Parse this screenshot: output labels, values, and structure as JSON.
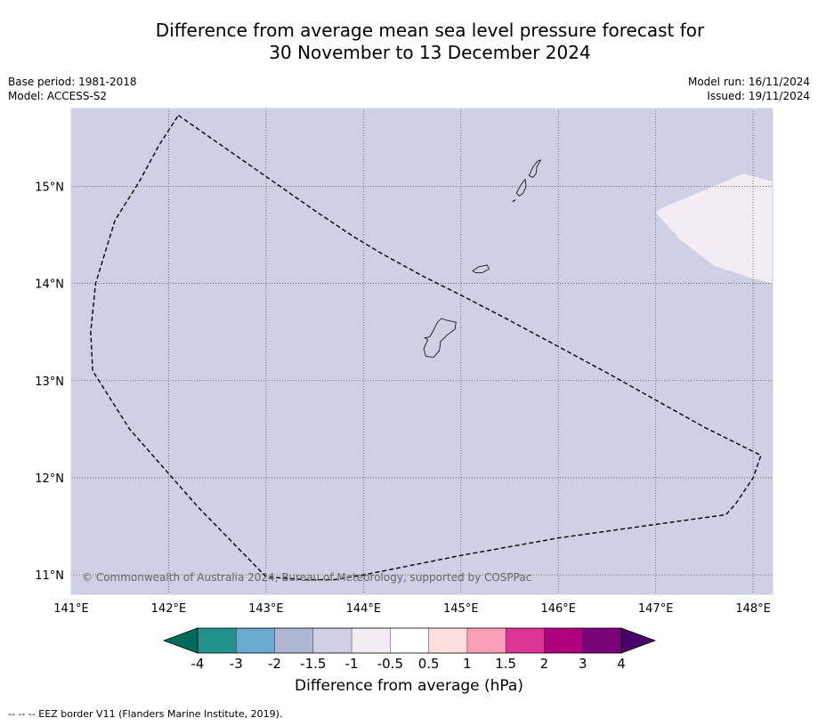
{
  "title": {
    "line1": "Difference from average mean sea level pressure forecast for",
    "line2": "30 November to 13 December 2024"
  },
  "meta_left": {
    "base_period": "Base period: 1981-2018",
    "model": "Model: ACCESS-S2"
  },
  "meta_right": {
    "model_run": "Model run: 16/11/2024",
    "issued": "Issued: 19/11/2024"
  },
  "map": {
    "lon_range": [
      141.0,
      148.2
    ],
    "lat_range": [
      10.8,
      15.8
    ],
    "lon_ticks": [
      141,
      142,
      143,
      144,
      145,
      146,
      147,
      148
    ],
    "lon_labels": [
      "141°E",
      "142°E",
      "143°E",
      "144°E",
      "145°E",
      "146°E",
      "147°E",
      "148°E"
    ],
    "lat_ticks": [
      11,
      12,
      13,
      14,
      15
    ],
    "lat_labels": [
      "11°N",
      "12°N",
      "13°N",
      "14°N",
      "15°N"
    ],
    "background_color": "#cfd0e5",
    "anomaly_patch_color": "#f4ecf4",
    "anomaly_patch": [
      [
        147.0,
        14.73
      ],
      [
        147.05,
        14.77
      ],
      [
        147.9,
        15.13
      ],
      [
        148.2,
        15.05
      ],
      [
        148.2,
        14.0
      ],
      [
        148.0,
        14.05
      ],
      [
        147.6,
        14.18
      ],
      [
        147.25,
        14.45
      ]
    ],
    "eez_border": [
      [
        142.1,
        15.73
      ],
      [
        142.5,
        15.45
      ],
      [
        143.0,
        15.1
      ],
      [
        143.5,
        14.75
      ],
      [
        143.9,
        14.48
      ],
      [
        144.2,
        14.3
      ],
      [
        144.6,
        14.08
      ],
      [
        145.0,
        13.88
      ],
      [
        145.5,
        13.62
      ],
      [
        146.0,
        13.35
      ],
      [
        146.5,
        13.08
      ],
      [
        147.0,
        12.8
      ],
      [
        147.5,
        12.52
      ],
      [
        148.08,
        12.23
      ],
      [
        148.0,
        12.0
      ],
      [
        147.82,
        11.73
      ],
      [
        147.72,
        11.62
      ],
      [
        147.0,
        11.52
      ],
      [
        146.0,
        11.38
      ],
      [
        145.0,
        11.2
      ],
      [
        144.0,
        11.0
      ],
      [
        143.7,
        10.95
      ],
      [
        143.4,
        10.95
      ],
      [
        143.0,
        10.98
      ],
      [
        142.3,
        11.7
      ],
      [
        141.6,
        12.5
      ],
      [
        141.22,
        13.1
      ],
      [
        141.2,
        13.5
      ],
      [
        141.25,
        14.0
      ],
      [
        141.45,
        14.65
      ],
      [
        141.7,
        15.05
      ],
      [
        141.9,
        15.42
      ],
      [
        142.1,
        15.73
      ]
    ],
    "islands": [
      {
        "name": "Guam",
        "points": [
          [
            144.63,
            13.44
          ],
          [
            144.68,
            13.45
          ],
          [
            144.72,
            13.52
          ],
          [
            144.76,
            13.6
          ],
          [
            144.8,
            13.64
          ],
          [
            144.86,
            13.62
          ],
          [
            144.95,
            13.6
          ],
          [
            144.94,
            13.53
          ],
          [
            144.86,
            13.47
          ],
          [
            144.79,
            13.4
          ],
          [
            144.78,
            13.31
          ],
          [
            144.72,
            13.24
          ],
          [
            144.64,
            13.25
          ],
          [
            144.62,
            13.33
          ],
          [
            144.66,
            13.42
          ],
          [
            144.63,
            13.44
          ]
        ]
      },
      {
        "name": "Rota",
        "points": [
          [
            145.12,
            14.13
          ],
          [
            145.18,
            14.17
          ],
          [
            145.27,
            14.19
          ],
          [
            145.29,
            14.15
          ],
          [
            145.22,
            14.11
          ],
          [
            145.15,
            14.11
          ],
          [
            145.12,
            14.13
          ]
        ]
      },
      {
        "name": "Tinian",
        "points": [
          [
            145.57,
            14.93
          ],
          [
            145.62,
            15.02
          ],
          [
            145.66,
            15.07
          ],
          [
            145.67,
            15.0
          ],
          [
            145.64,
            14.93
          ],
          [
            145.6,
            14.9
          ],
          [
            145.57,
            14.93
          ]
        ]
      },
      {
        "name": "Saipan",
        "points": [
          [
            145.7,
            15.11
          ],
          [
            145.74,
            15.2
          ],
          [
            145.79,
            15.26
          ],
          [
            145.82,
            15.27
          ],
          [
            145.78,
            15.2
          ],
          [
            145.77,
            15.13
          ],
          [
            145.74,
            15.09
          ],
          [
            145.7,
            15.11
          ]
        ]
      },
      {
        "name": "Aguijan",
        "points": [
          [
            145.53,
            14.84
          ],
          [
            145.56,
            14.86
          ]
        ]
      }
    ],
    "copyright": "© Commonwealth of Australia 2024, Bureau of Meteorology, supported by COSPPac"
  },
  "colorbar": {
    "title": "Difference from average (hPa)",
    "tick_labels": [
      "-4",
      "-3",
      "-2",
      "-1.5",
      "-1",
      "-0.5",
      "0.5",
      "1",
      "1.5",
      "2",
      "3",
      "4"
    ],
    "colors": [
      "#21918c",
      "#6aaad1",
      "#aeb6d4",
      "#cfd0e5",
      "#f4ecf4",
      "#ffffff",
      "#fde0dd",
      "#fa9fb5",
      "#dd3497",
      "#ae017e",
      "#7a0177"
    ],
    "extend_low_color": "#016c59",
    "extend_high_color": "#49006a"
  },
  "footer": "-- -- -- EEZ border V11 (Flanders Marine Institute, 2019)."
}
